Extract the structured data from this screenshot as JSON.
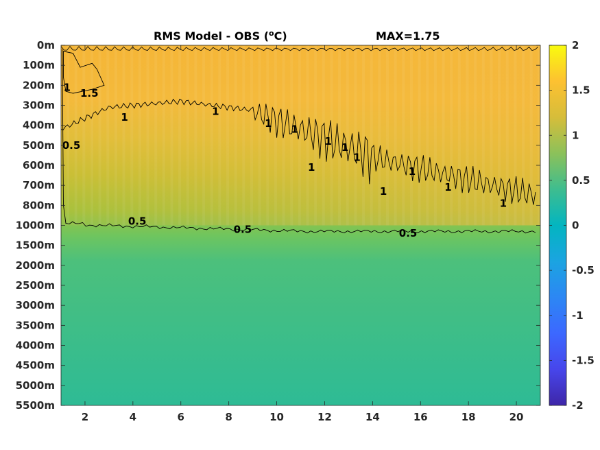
{
  "chart_data": {
    "type": "heatmap",
    "title": "RMS Model - OBS (",
    "title_unit_sup": "o",
    "title_unit_end": "C)",
    "max_label": "MAX=1.75",
    "x_ticks": [
      2,
      4,
      6,
      8,
      10,
      12,
      14,
      16,
      18,
      20
    ],
    "x_range": [
      1,
      21
    ],
    "depth_ticks": [
      "0m",
      "100m",
      "200m",
      "300m",
      "400m",
      "500m",
      "600m",
      "700m",
      "800m",
      "1000m",
      "1500m",
      "2000m",
      "2500m",
      "3000m",
      "3500m",
      "4000m",
      "4500m",
      "5000m",
      "5500m"
    ],
    "colorbar": {
      "range": [
        -2,
        2
      ],
      "ticks": [
        2,
        1.5,
        1,
        0.5,
        0,
        -0.5,
        -1,
        -1.5,
        -2
      ],
      "tick_labels": [
        "2",
        "1.5",
        "1",
        "0.5",
        "0",
        "-0.5",
        "-1",
        "-1.5",
        "-2"
      ],
      "colormap": "parula"
    },
    "contour_levels": [
      0.5,
      1,
      1.5
    ],
    "contour_labels": [
      {
        "text": "1.5",
        "x": 1.8,
        "depth_index": 2.4
      },
      {
        "text": "1",
        "x": 1.1,
        "depth_index": 2.1
      },
      {
        "text": "0.5",
        "x": 1.05,
        "depth_index": 5.0
      },
      {
        "text": "1",
        "x": 3.5,
        "depth_index": 3.6
      },
      {
        "text": "1",
        "x": 7.3,
        "depth_index": 3.3
      },
      {
        "text": "1",
        "x": 9.5,
        "depth_index": 3.9
      },
      {
        "text": "1",
        "x": 10.6,
        "depth_index": 4.2
      },
      {
        "text": "1",
        "x": 11.3,
        "depth_index": 6.1
      },
      {
        "text": "1",
        "x": 12.0,
        "depth_index": 4.8
      },
      {
        "text": "1",
        "x": 12.7,
        "depth_index": 5.1
      },
      {
        "text": "1",
        "x": 13.2,
        "depth_index": 5.6
      },
      {
        "text": "1",
        "x": 14.3,
        "depth_index": 7.3
      },
      {
        "text": "1",
        "x": 15.5,
        "depth_index": 6.3
      },
      {
        "text": "1",
        "x": 17.0,
        "depth_index": 7.1
      },
      {
        "text": "1",
        "x": 19.3,
        "depth_index": 7.9
      },
      {
        "text": "0.5",
        "x": 3.8,
        "depth_index": 8.8
      },
      {
        "text": "0.5",
        "x": 8.2,
        "depth_index": 9.2
      },
      {
        "text": "0.5",
        "x": 15.1,
        "depth_index": 9.4
      }
    ],
    "surface_profile": [
      {
        "depth_index": 0,
        "value": 1.3
      },
      {
        "depth_index": 3,
        "value": 1.15
      },
      {
        "depth_index": 6,
        "value": 0.95
      },
      {
        "depth_index": 9,
        "value": 0.55
      },
      {
        "depth_index": 10,
        "value": 0.5
      },
      {
        "depth_index": 12,
        "value": 0.42
      },
      {
        "depth_index": 18,
        "value": 0.38
      }
    ]
  }
}
